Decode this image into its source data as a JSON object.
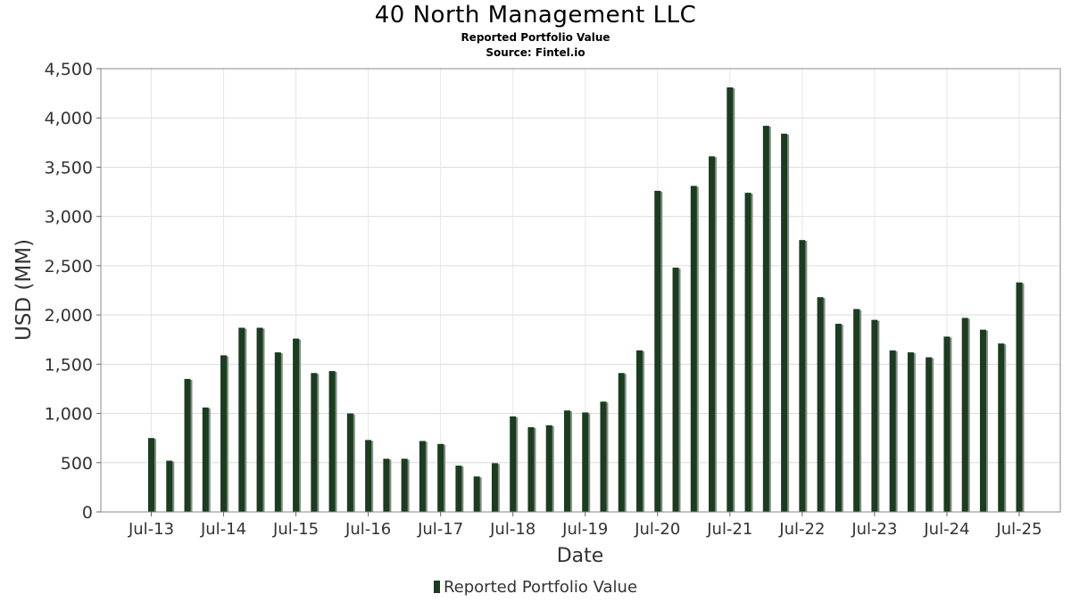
{
  "chart_data": {
    "type": "bar",
    "title": "40 North Management LLC",
    "subtitle": "Reported Portfolio Value",
    "source": "Source: Fintel.io",
    "xlabel": "Date",
    "ylabel": "USD (MM)",
    "ylim": [
      0,
      4500
    ],
    "yticks": [
      0,
      500,
      1000,
      1500,
      2000,
      2500,
      3000,
      3500,
      4000,
      4500
    ],
    "ytick_labels": [
      "0",
      "500",
      "1,000",
      "1,500",
      "2,000",
      "2,500",
      "3,000",
      "3,500",
      "4,000",
      "4,500"
    ],
    "xtick_labels": [
      "Jul-13",
      "Jul-14",
      "Jul-15",
      "Jul-16",
      "Jul-17",
      "Jul-18",
      "Jul-19",
      "Jul-20",
      "Jul-21",
      "Jul-22",
      "Jul-23",
      "Jul-24",
      "Jul-25"
    ],
    "grid": true,
    "legend_position": "bottom",
    "bar_color": "#1a3d1f",
    "shadow_color": "#8a8a8a",
    "series": [
      {
        "name": "Reported Portfolio Value",
        "values": [
          750,
          520,
          1350,
          1060,
          1590,
          1870,
          1870,
          1620,
          1760,
          1410,
          1430,
          1000,
          730,
          540,
          540,
          720,
          690,
          470,
          360,
          495,
          970,
          860,
          880,
          1030,
          1010,
          1120,
          1410,
          1640,
          3260,
          2480,
          3310,
          3610,
          4310,
          3240,
          3920,
          3840,
          2760,
          2180,
          1910,
          2060,
          1950,
          1640,
          1620,
          1570,
          1780,
          1970,
          1850,
          1710,
          2330
        ]
      }
    ]
  }
}
